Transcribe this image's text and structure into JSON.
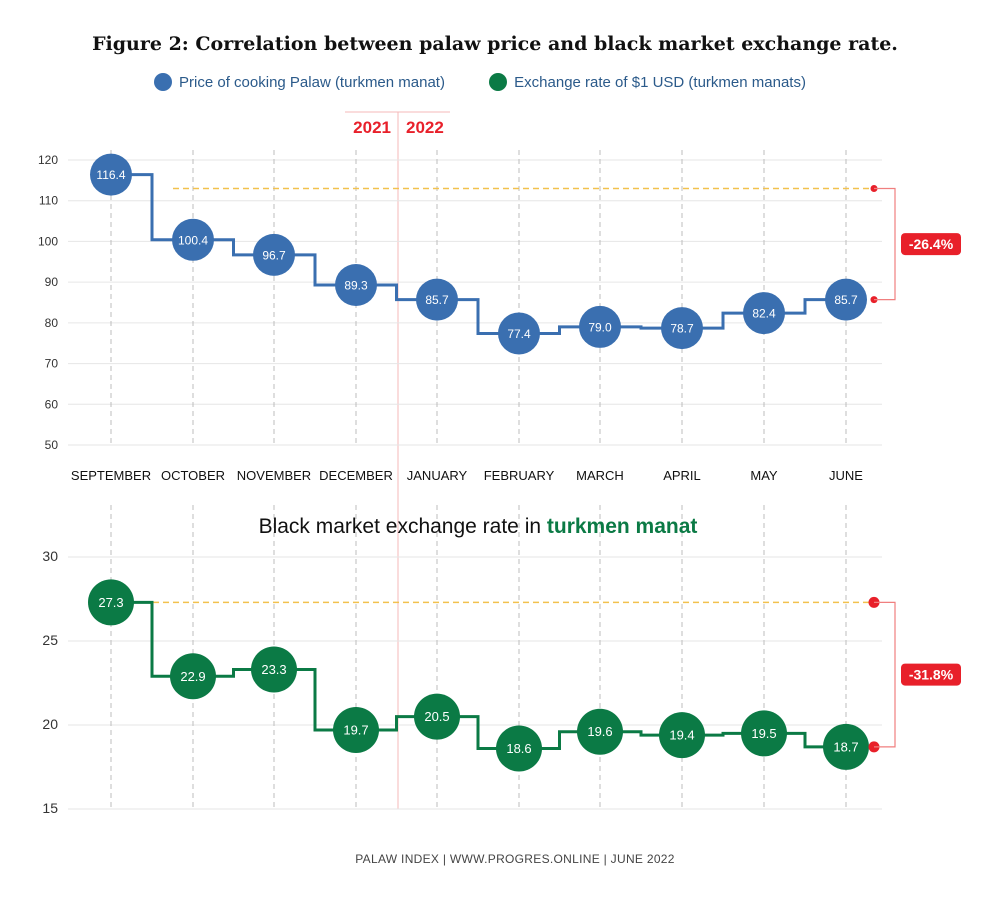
{
  "title": "Figure 2: Correlation between palaw price and black market exchange rate.",
  "legend": [
    {
      "label": "Price of cooking Palaw (turkmen manat)",
      "color": "#3a6fb0"
    },
    {
      "label": "Exchange rate of $1 USD  (turkmen manats)",
      "color": "#0b7a45"
    }
  ],
  "year_labels": {
    "left": "2021",
    "right": "2022",
    "color": "#e8202a"
  },
  "footer": "PALAW INDEX  |  WWW.PROGRES.ONLINE  |  JUNE 2022",
  "chart_data": [
    {
      "type": "line",
      "step": true,
      "categories": [
        "SEPTEMBER",
        "OCTOBER",
        "NOVEMBER",
        "DECEMBER",
        "JANUARY",
        "FEBRUARY",
        "MARCH",
        "APRIL",
        "MAY",
        "JUNE"
      ],
      "series": [
        {
          "name": "Price of cooking Palaw (turkmen manat)",
          "color": "#3a6fb0",
          "values": [
            116.4,
            100.4,
            96.7,
            89.3,
            85.7,
            77.4,
            79.0,
            78.7,
            82.4,
            85.7
          ],
          "labels": [
            "116.4",
            "100.4",
            "96.7",
            "89.3",
            "85.7",
            "77.4",
            "79.0",
            "78.7",
            "82.4",
            "85.7"
          ]
        }
      ],
      "ylim": [
        50,
        120
      ],
      "yticks": [
        "120",
        "110",
        "100",
        "90",
        "80",
        "70",
        "60",
        "50"
      ],
      "reference_line": 113,
      "change_label": "-26.4%",
      "grid": true
    },
    {
      "type": "line",
      "step": true,
      "title": "Black market exchange rate in ",
      "title_highlight": "turkmen manat",
      "title_highlight_color": "#0b7a45",
      "categories": [
        "SEPTEMBER",
        "OCTOBER",
        "NOVEMBER",
        "DECEMBER",
        "JANUARY",
        "FEBRUARY",
        "MARCH",
        "APRIL",
        "MAY",
        "JUNE"
      ],
      "series": [
        {
          "name": "Exchange rate of $1 USD  (turkmen manats)",
          "color": "#0b7a45",
          "values": [
            27.3,
            22.9,
            23.3,
            19.7,
            20.5,
            18.6,
            19.6,
            19.4,
            19.5,
            18.7
          ],
          "labels": [
            "27.3",
            "22.9",
            "23.3",
            "19.7",
            "20.5",
            "18.6",
            "19.6",
            "19.4",
            "19.5",
            "18.7"
          ]
        }
      ],
      "ylim": [
        15,
        30
      ],
      "yticks": [
        "30",
        "25",
        "20",
        "15"
      ],
      "reference_line": 27.3,
      "change_label": "-31.8%",
      "grid": true
    }
  ]
}
